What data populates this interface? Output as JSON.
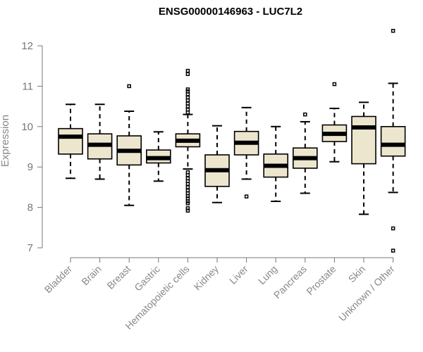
{
  "chart_data": {
    "type": "boxplot",
    "title": "ENSG00000146963 - LUC7L2",
    "xlabel": "",
    "ylabel": "Expression",
    "ylim": [
      6.8,
      12.5
    ],
    "yticks": [
      7,
      8,
      9,
      10,
      11,
      12
    ],
    "tick_labels": [
      "7",
      "8",
      "9",
      "10",
      "11",
      "12"
    ],
    "grid": false,
    "categories": [
      "Bladder",
      "Brain",
      "Breast",
      "Gastric",
      "Hematopoietic cells",
      "Kidney",
      "Liver",
      "Lung",
      "Pancreas",
      "Prostate",
      "Skin",
      "Unknown / Other"
    ],
    "series": [
      {
        "name": "Bladder",
        "whisker_low": 8.72,
        "q1": 9.32,
        "median": 9.75,
        "q3": 9.95,
        "whisker_high": 10.55,
        "outliers": []
      },
      {
        "name": "Brain",
        "whisker_low": 8.7,
        "q1": 9.2,
        "median": 9.55,
        "q3": 9.82,
        "whisker_high": 10.55,
        "outliers": []
      },
      {
        "name": "Breast",
        "whisker_low": 8.05,
        "q1": 9.05,
        "median": 9.4,
        "q3": 9.77,
        "whisker_high": 10.38,
        "outliers": [
          11.0
        ]
      },
      {
        "name": "Gastric",
        "whisker_low": 8.65,
        "q1": 9.1,
        "median": 9.22,
        "q3": 9.42,
        "whisker_high": 9.87,
        "outliers": []
      },
      {
        "name": "Hematopoietic cells",
        "whisker_low": 8.95,
        "q1": 9.5,
        "median": 9.65,
        "q3": 9.82,
        "whisker_high": 10.3,
        "outliers": [
          7.92,
          7.98,
          8.1,
          8.15,
          8.22,
          8.28,
          8.35,
          8.42,
          8.5,
          8.58,
          8.65,
          8.72,
          8.8,
          8.87,
          10.35,
          10.42,
          10.5,
          10.57,
          10.65,
          10.72,
          10.8,
          10.87,
          10.92,
          11.3,
          11.38
        ]
      },
      {
        "name": "Kidney",
        "whisker_low": 8.12,
        "q1": 8.52,
        "median": 8.92,
        "q3": 9.3,
        "whisker_high": 10.02,
        "outliers": []
      },
      {
        "name": "Liver",
        "whisker_low": 8.7,
        "q1": 9.3,
        "median": 9.6,
        "q3": 9.88,
        "whisker_high": 10.47,
        "outliers": [
          8.27
        ]
      },
      {
        "name": "Lung",
        "whisker_low": 8.15,
        "q1": 8.75,
        "median": 9.03,
        "q3": 9.32,
        "whisker_high": 10.0,
        "outliers": []
      },
      {
        "name": "Pancreas",
        "whisker_low": 8.35,
        "q1": 8.97,
        "median": 9.22,
        "q3": 9.47,
        "whisker_high": 10.12,
        "outliers": [
          10.3
        ]
      },
      {
        "name": "Prostate",
        "whisker_low": 9.13,
        "q1": 9.63,
        "median": 9.82,
        "q3": 10.04,
        "whisker_high": 10.45,
        "outliers": [
          11.05
        ]
      },
      {
        "name": "Skin",
        "whisker_low": 7.83,
        "q1": 9.08,
        "median": 9.98,
        "q3": 10.25,
        "whisker_high": 10.6,
        "outliers": []
      },
      {
        "name": "Unknown / Other",
        "whisker_low": 8.37,
        "q1": 9.27,
        "median": 9.55,
        "q3": 10.0,
        "whisker_high": 11.07,
        "outliers": [
          12.37,
          7.48,
          6.93
        ]
      }
    ]
  }
}
